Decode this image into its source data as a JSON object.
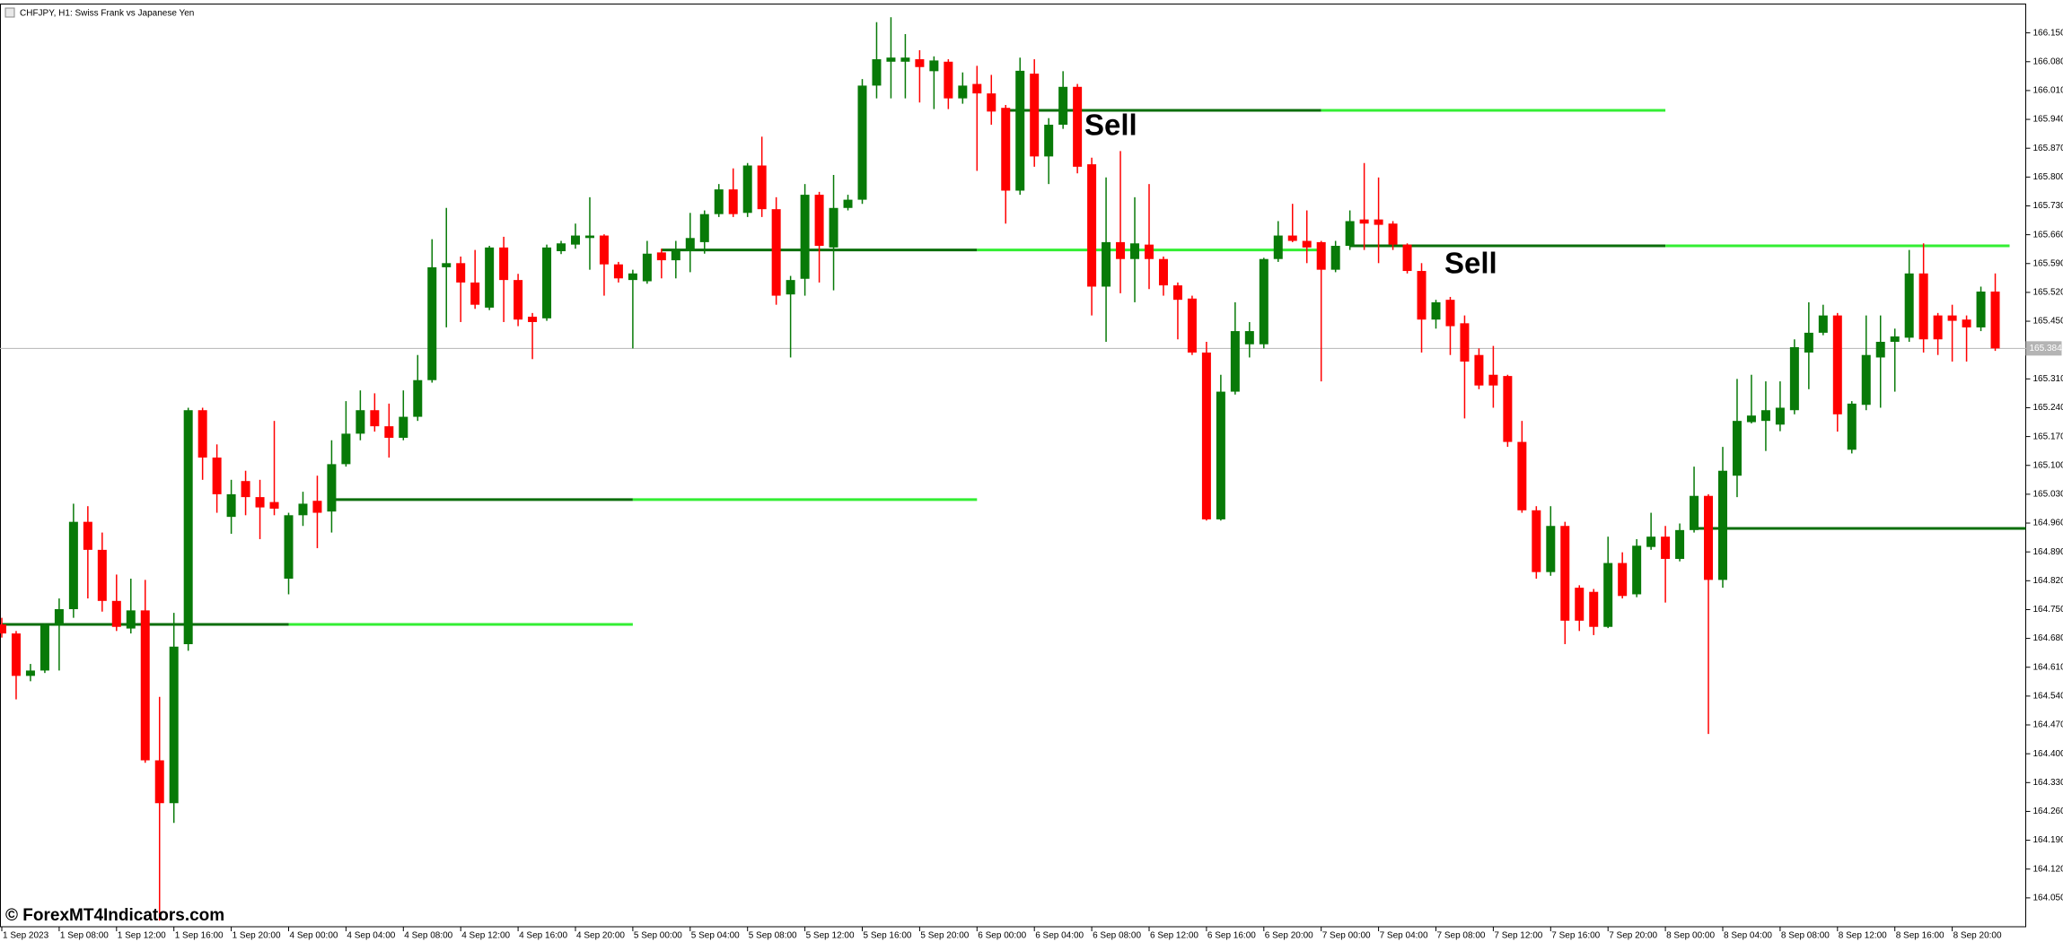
{
  "chart_data": {
    "type": "candlestick",
    "title": "CHFJPY, H1:  Swiss Frank vs Japanese Yen",
    "watermark": "© ForexMT4Indicators.com",
    "annotations": [
      "Sell",
      "Sell"
    ],
    "up_color": "#087a08",
    "down_color": "#ff0000",
    "level_color": "#0a6e0a",
    "signal_color": "#33ee33",
    "last_price": 165.384,
    "last_price_color": "#b4b4b4",
    "ylim": [
      163.98,
      166.22
    ],
    "yticks": [
      {
        "value": 166.15,
        "label": "166.150"
      },
      {
        "value": 166.08,
        "label": "166.080"
      },
      {
        "value": 166.01,
        "label": "166.010"
      },
      {
        "value": 165.94,
        "label": "165.940"
      },
      {
        "value": 165.87,
        "label": "165.870"
      },
      {
        "value": 165.8,
        "label": "165.800"
      },
      {
        "value": 165.73,
        "label": "165.730"
      },
      {
        "value": 165.66,
        "label": "165.660"
      },
      {
        "value": 165.59,
        "label": "165.590"
      },
      {
        "value": 165.52,
        "label": "165.520"
      },
      {
        "value": 165.45,
        "label": "165.450"
      },
      {
        "value": 165.31,
        "label": "165.310"
      },
      {
        "value": 165.24,
        "label": "165.240"
      },
      {
        "value": 165.17,
        "label": "165.170"
      },
      {
        "value": 165.1,
        "label": "165.100"
      },
      {
        "value": 165.03,
        "label": "165.030"
      },
      {
        "value": 164.96,
        "label": "164.960"
      },
      {
        "value": 164.89,
        "label": "164.890"
      },
      {
        "value": 164.82,
        "label": "164.820"
      },
      {
        "value": 164.75,
        "label": "164.750"
      },
      {
        "value": 164.68,
        "label": "164.680"
      },
      {
        "value": 164.61,
        "label": "164.610"
      },
      {
        "value": 164.54,
        "label": "164.540"
      },
      {
        "value": 164.47,
        "label": "164.470"
      },
      {
        "value": 164.4,
        "label": "164.400"
      },
      {
        "value": 164.33,
        "label": "164.330"
      },
      {
        "value": 164.26,
        "label": "164.260"
      },
      {
        "value": 164.19,
        "label": "164.190"
      },
      {
        "value": 164.12,
        "label": "164.120"
      },
      {
        "value": 164.05,
        "label": "164.050"
      }
    ],
    "categories": [
      "1 Sep 2023",
      null,
      null,
      null,
      "1 Sep 08:00",
      null,
      null,
      null,
      "1 Sep 12:00",
      null,
      null,
      null,
      "1 Sep 16:00",
      null,
      null,
      null,
      "1 Sep 20:00",
      null,
      null,
      null,
      "4 Sep 00:00",
      null,
      null,
      null,
      "4 Sep 04:00",
      null,
      null,
      null,
      "4 Sep 08:00",
      null,
      null,
      null,
      "4 Sep 12:00",
      null,
      null,
      null,
      "4 Sep 16:00",
      null,
      null,
      null,
      "4 Sep 20:00",
      null,
      null,
      null,
      "5 Sep 00:00",
      null,
      null,
      null,
      "5 Sep 04:00",
      null,
      null,
      null,
      "5 Sep 08:00",
      null,
      null,
      null,
      "5 Sep 12:00",
      null,
      null,
      null,
      "5 Sep 16:00",
      null,
      null,
      null,
      "5 Sep 20:00",
      null,
      null,
      null,
      "6 Sep 00:00",
      null,
      null,
      null,
      "6 Sep 04:00",
      null,
      null,
      null,
      "6 Sep 08:00",
      null,
      null,
      null,
      "6 Sep 12:00",
      null,
      null,
      null,
      "6 Sep 16:00",
      null,
      null,
      null,
      "6 Sep 20:00",
      null,
      null,
      null,
      "7 Sep 00:00",
      null,
      null,
      null,
      "7 Sep 04:00",
      null,
      null,
      null,
      "7 Sep 08:00",
      null,
      null,
      null,
      "7 Sep 12:00",
      null,
      null,
      null,
      "7 Sep 16:00",
      null,
      null,
      null,
      "7 Sep 20:00",
      null,
      null,
      null,
      "8 Sep 00:00",
      null,
      null,
      null,
      "8 Sep 04:00",
      null,
      null,
      null,
      "8 Sep 08:00",
      null,
      null,
      null,
      "8 Sep 12:00",
      null,
      null,
      null,
      "8 Sep 16:00",
      null,
      null,
      null,
      "8 Sep 20:00",
      null,
      null,
      null
    ],
    "open": [
      164.714,
      164.692,
      164.589,
      164.602,
      164.711,
      164.751,
      164.963,
      164.895,
      164.771,
      164.704,
      164.748,
      164.384,
      164.28,
      164.666,
      165.234,
      165.119,
      164.975,
      165.062,
      165.023,
      165.011,
      164.825,
      164.979,
      165.014,
      164.988,
      165.103,
      165.177,
      165.234,
      165.195,
      165.167,
      165.218,
      165.307,
      165.581,
      165.591,
      165.544,
      165.483,
      165.629,
      165.55,
      165.461,
      165.457,
      165.62,
      165.636,
      165.652,
      165.658,
      165.588,
      165.55,
      165.547,
      165.617,
      165.598,
      165.62,
      165.642,
      165.71,
      165.77,
      165.713,
      165.828,
      165.722,
      165.515,
      165.553,
      165.757,
      165.629,
      165.725,
      165.745,
      166.022,
      166.08,
      166.08,
      166.086,
      166.057,
      166.08,
      165.991,
      166.026,
      166.003,
      165.968,
      165.767,
      166.051,
      165.85,
      165.927,
      166.019,
      165.831,
      165.534,
      165.642,
      165.601,
      165.636,
      165.601,
      165.537,
      165.505,
      165.374,
      164.969,
      165.279,
      165.394,
      165.394,
      165.601,
      165.658,
      165.645,
      165.642,
      165.575,
      165.633,
      165.697,
      165.697,
      165.687,
      165.636,
      165.572,
      165.454,
      165.502,
      165.445,
      165.368,
      165.32,
      165.317,
      165.157,
      164.991,
      164.841,
      164.953,
      164.803,
      164.793,
      164.708,
      164.863,
      164.787,
      164.902,
      164.927,
      164.873,
      164.943,
      165.026,
      164.822,
      165.075,
      165.205,
      165.208,
      165.199,
      165.234,
      165.374,
      165.422,
      165.464,
      165.138,
      165.247,
      165.362,
      165.4,
      165.41,
      165.566,
      165.464,
      165.464,
      165.454,
      165.435,
      165.522
    ],
    "high": [
      164.73,
      164.698,
      164.618,
      164.717,
      164.777,
      165.007,
      165.001,
      164.937,
      164.835,
      164.825,
      164.822,
      164.538,
      164.742,
      165.24,
      165.24,
      165.151,
      165.065,
      165.087,
      165.065,
      165.208,
      164.985,
      165.036,
      165.075,
      165.161,
      165.256,
      165.282,
      165.275,
      165.25,
      165.282,
      165.368,
      165.649,
      165.725,
      165.607,
      165.623,
      165.633,
      165.655,
      165.565,
      165.47,
      165.636,
      165.645,
      165.687,
      165.751,
      165.661,
      165.594,
      165.575,
      165.645,
      165.626,
      165.645,
      165.713,
      165.719,
      165.783,
      165.821,
      165.834,
      165.898,
      165.751,
      165.56,
      165.783,
      165.764,
      165.805,
      165.757,
      166.038,
      166.176,
      166.188,
      166.147,
      166.108,
      166.093,
      166.086,
      166.054,
      166.07,
      166.048,
      165.975,
      166.09,
      166.086,
      165.943,
      166.057,
      166.026,
      165.847,
      165.799,
      165.863,
      165.751,
      165.783,
      165.607,
      165.544,
      165.512,
      165.4,
      165.32,
      165.496,
      165.448,
      165.604,
      165.693,
      165.735,
      165.719,
      165.645,
      165.645,
      165.719,
      165.834,
      165.799,
      165.693,
      165.639,
      165.591,
      165.502,
      165.509,
      165.464,
      165.384,
      165.39,
      165.32,
      165.208,
      165.001,
      165.001,
      164.963,
      164.809,
      164.8,
      164.927,
      164.889,
      164.921,
      164.985,
      164.953,
      164.959,
      165.097,
      165.03,
      165.145,
      165.31,
      165.32,
      165.304,
      165.304,
      165.406,
      165.496,
      165.49,
      165.47,
      165.256,
      165.464,
      165.464,
      165.432,
      165.623,
      165.639,
      165.47,
      165.49,
      165.464,
      165.534,
      165.566
    ],
    "low": [
      164.682,
      164.532,
      164.576,
      164.596,
      164.602,
      164.73,
      164.777,
      164.745,
      164.698,
      164.692,
      164.378,
      163.995,
      164.232,
      164.65,
      165.065,
      164.985,
      164.934,
      164.979,
      164.921,
      164.979,
      164.787,
      164.953,
      164.899,
      164.937,
      165.097,
      165.161,
      165.182,
      165.119,
      165.161,
      165.208,
      165.301,
      165.435,
      165.448,
      165.48,
      165.477,
      165.448,
      165.438,
      165.358,
      165.451,
      165.613,
      165.626,
      165.575,
      165.512,
      165.544,
      165.384,
      165.541,
      165.554,
      165.554,
      165.569,
      165.614,
      165.703,
      165.703,
      165.703,
      165.703,
      165.49,
      165.362,
      165.512,
      165.544,
      165.525,
      165.719,
      165.735,
      165.991,
      165.991,
      165.991,
      165.981,
      165.965,
      165.965,
      165.978,
      165.815,
      165.927,
      165.687,
      165.757,
      165.825,
      165.783,
      165.917,
      165.809,
      165.464,
      165.4,
      165.518,
      165.496,
      165.528,
      165.512,
      165.406,
      165.368,
      164.966,
      164.966,
      165.272,
      165.362,
      165.384,
      165.594,
      165.642,
      165.591,
      165.304,
      165.569,
      165.623,
      165.623,
      165.591,
      165.623,
      165.566,
      165.374,
      165.432,
      165.368,
      165.214,
      165.285,
      165.24,
      165.145,
      164.985,
      164.825,
      164.832,
      164.666,
      164.698,
      164.688,
      164.705,
      164.777,
      164.78,
      164.895,
      164.767,
      164.867,
      164.937,
      164.448,
      164.803,
      165.023,
      165.202,
      165.135,
      165.183,
      165.224,
      165.285,
      165.416,
      165.182,
      165.129,
      165.234,
      165.24,
      165.279,
      165.4,
      165.374,
      165.368,
      165.352,
      165.352,
      165.426,
      165.378
    ],
    "close": [
      164.692,
      164.589,
      164.602,
      164.711,
      164.751,
      164.963,
      164.895,
      164.771,
      164.708,
      164.748,
      164.384,
      164.28,
      164.66,
      165.234,
      165.119,
      165.03,
      165.03,
      165.023,
      164.998,
      164.995,
      164.979,
      165.007,
      164.985,
      165.103,
      165.177,
      165.234,
      165.195,
      165.167,
      165.218,
      165.307,
      165.581,
      165.591,
      165.544,
      165.49,
      165.629,
      165.55,
      165.454,
      165.448,
      165.629,
      165.639,
      165.658,
      165.658,
      165.588,
      165.554,
      165.566,
      165.614,
      165.598,
      165.623,
      165.652,
      165.71,
      165.77,
      165.71,
      165.828,
      165.722,
      165.512,
      165.55,
      165.757,
      165.633,
      165.725,
      165.745,
      166.022,
      166.086,
      166.09,
      166.09,
      166.067,
      166.083,
      165.991,
      166.022,
      166.003,
      165.959,
      165.767,
      166.058,
      165.85,
      165.927,
      166.019,
      165.825,
      165.534,
      165.642,
      165.601,
      165.639,
      165.601,
      165.537,
      165.502,
      165.374,
      164.969,
      165.279,
      165.426,
      165.426,
      165.601,
      165.658,
      165.645,
      165.629,
      165.575,
      165.633,
      165.693,
      165.687,
      165.684,
      165.636,
      165.572,
      165.454,
      165.496,
      165.438,
      165.352,
      165.294,
      165.294,
      165.157,
      164.991,
      164.841,
      164.953,
      164.723,
      164.723,
      164.708,
      164.863,
      164.783,
      164.905,
      164.927,
      164.873,
      164.943,
      165.026,
      164.822,
      165.087,
      165.208,
      165.221,
      165.234,
      165.24,
      165.387,
      165.422,
      165.464,
      165.224,
      165.25,
      165.368,
      165.4,
      165.413,
      165.566,
      165.406,
      165.406,
      165.451,
      165.435,
      165.522,
      165.384
    ],
    "levels": [
      {
        "value": 164.714,
        "from": 0,
        "switch": 20,
        "to": 44
      },
      {
        "value": 165.017,
        "from": 23,
        "switch": 44,
        "to": 68
      },
      {
        "value": 165.623,
        "from": 46,
        "switch": 68,
        "to": 92
      },
      {
        "value": 165.962,
        "from": 70,
        "switch": 92,
        "to": 116
      },
      {
        "value": 165.633,
        "from": 94,
        "switch": 116,
        "to": 140
      },
      {
        "value": 164.947,
        "from": 118
      }
    ]
  }
}
